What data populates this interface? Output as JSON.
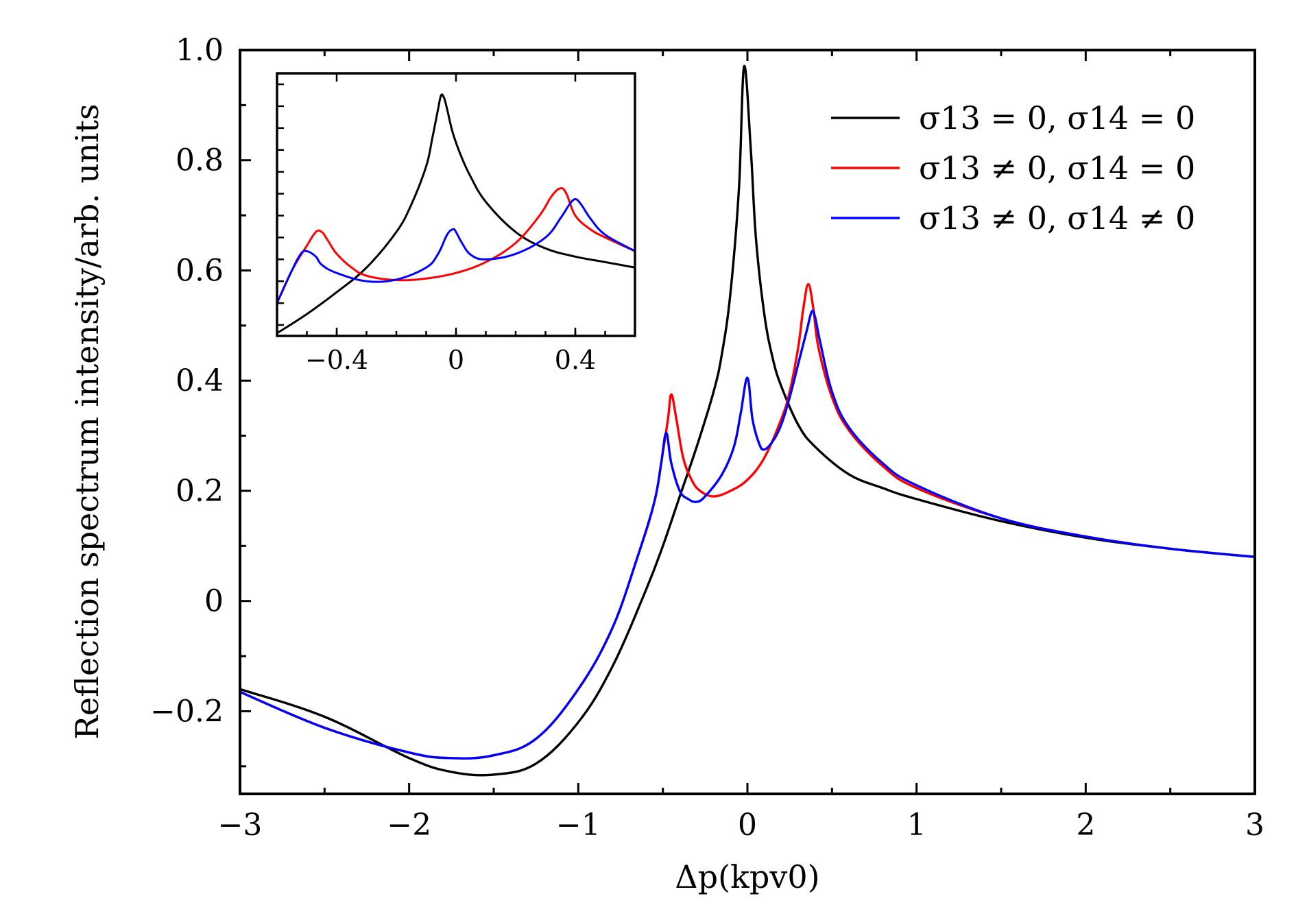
{
  "chart_data": {
    "type": "line",
    "xlabel": "Δp(kpv0)",
    "ylabel": "Reflection spectrum intensity/arb. units",
    "xlim": [
      -3,
      3
    ],
    "ylim": [
      -0.35,
      1.0
    ],
    "x_ticks": [
      -3,
      -2,
      -1,
      0,
      1,
      2,
      3
    ],
    "x_tick_labels": [
      "−3",
      "−2",
      "−1",
      "0",
      "1",
      "2",
      "3"
    ],
    "y_ticks": [
      -0.2,
      0,
      0.2,
      0.4,
      0.6,
      0.8,
      1.0
    ],
    "y_tick_labels": [
      "−0.2",
      "0",
      "0.2",
      "0.4",
      "0.6",
      "0.8",
      "1.0"
    ],
    "legend_position": "top-right",
    "series": [
      {
        "name": "σ13 = 0, σ14 = 0",
        "color": "#000000",
        "x": [
          -3.0,
          -2.5,
          -2.0,
          -1.75,
          -1.5,
          -1.25,
          -1.0,
          -0.8,
          -0.6,
          -0.5,
          -0.4,
          -0.3,
          -0.2,
          -0.15,
          -0.1,
          -0.05,
          -0.02,
          0.02,
          0.05,
          0.1,
          0.15,
          0.2,
          0.3,
          0.4,
          0.6,
          0.8,
          1.0,
          1.5,
          2.0,
          2.5,
          3.0
        ],
        "y": [
          -0.16,
          -0.21,
          -0.285,
          -0.31,
          -0.315,
          -0.295,
          -0.22,
          -0.12,
          0.02,
          0.1,
          0.19,
          0.28,
          0.38,
          0.45,
          0.56,
          0.75,
          0.97,
          0.82,
          0.66,
          0.52,
          0.44,
          0.39,
          0.32,
          0.28,
          0.23,
          0.205,
          0.185,
          0.145,
          0.115,
          0.095,
          0.08
        ]
      },
      {
        "name": "σ13 ≠ 0, σ14 = 0",
        "color": "#ff0000",
        "x": [
          -3.0,
          -2.5,
          -2.0,
          -1.75,
          -1.5,
          -1.25,
          -1.0,
          -0.8,
          -0.65,
          -0.55,
          -0.5,
          -0.47,
          -0.45,
          -0.42,
          -0.38,
          -0.33,
          -0.28,
          -0.2,
          -0.1,
          0.0,
          0.1,
          0.2,
          0.25,
          0.3,
          0.33,
          0.36,
          0.39,
          0.42,
          0.5,
          0.6,
          0.8,
          1.0,
          1.5,
          2.0,
          2.5,
          3.0
        ],
        "y": [
          -0.165,
          -0.23,
          -0.275,
          -0.285,
          -0.28,
          -0.25,
          -0.16,
          -0.05,
          0.08,
          0.18,
          0.27,
          0.33,
          0.375,
          0.33,
          0.26,
          0.22,
          0.2,
          0.19,
          0.2,
          0.22,
          0.26,
          0.33,
          0.38,
          0.46,
          0.53,
          0.575,
          0.53,
          0.46,
          0.37,
          0.31,
          0.245,
          0.205,
          0.15,
          0.117,
          0.095,
          0.08
        ]
      },
      {
        "name": "σ13 ≠ 0, σ14 ≠ 0",
        "color": "#0000ff",
        "x": [
          -3.0,
          -2.5,
          -2.0,
          -1.75,
          -1.5,
          -1.25,
          -1.0,
          -0.8,
          -0.65,
          -0.55,
          -0.51,
          -0.48,
          -0.45,
          -0.4,
          -0.35,
          -0.3,
          -0.25,
          -0.15,
          -0.08,
          -0.04,
          0.0,
          0.03,
          0.07,
          0.1,
          0.15,
          0.2,
          0.25,
          0.3,
          0.35,
          0.38,
          0.4,
          0.43,
          0.5,
          0.6,
          0.8,
          1.0,
          1.5,
          2.0,
          2.5,
          3.0
        ],
        "y": [
          -0.165,
          -0.23,
          -0.275,
          -0.285,
          -0.28,
          -0.25,
          -0.16,
          -0.05,
          0.08,
          0.18,
          0.25,
          0.305,
          0.25,
          0.2,
          0.185,
          0.18,
          0.19,
          0.23,
          0.28,
          0.34,
          0.405,
          0.33,
          0.285,
          0.275,
          0.29,
          0.32,
          0.37,
          0.43,
          0.49,
          0.525,
          0.515,
          0.47,
          0.38,
          0.315,
          0.25,
          0.21,
          0.15,
          0.117,
          0.095,
          0.08
        ]
      }
    ],
    "inset": {
      "xlim": [
        -0.6,
        0.6
      ],
      "ylim": [
        0.5,
        0.98
      ],
      "x_ticks": [
        -0.4,
        0,
        0.4
      ],
      "x_tick_labels": [
        "−0.4",
        "0",
        "0.4"
      ],
      "series": [
        {
          "color": "#000000",
          "x": [
            -0.6,
            -0.5,
            -0.4,
            -0.3,
            -0.2,
            -0.15,
            -0.1,
            -0.08,
            -0.06,
            -0.05,
            -0.04,
            -0.03,
            -0.01,
            0.02,
            0.05,
            0.1,
            0.2,
            0.3,
            0.4,
            0.5,
            0.6
          ],
          "y": [
            0.505,
            0.54,
            0.58,
            0.625,
            0.69,
            0.74,
            0.81,
            0.86,
            0.915,
            0.94,
            0.935,
            0.915,
            0.87,
            0.825,
            0.79,
            0.745,
            0.69,
            0.66,
            0.645,
            0.635,
            0.625
          ]
        },
        {
          "color": "#ff0000",
          "x": [
            -0.6,
            -0.55,
            -0.5,
            -0.47,
            -0.45,
            -0.43,
            -0.4,
            -0.35,
            -0.3,
            -0.2,
            -0.1,
            0.0,
            0.1,
            0.2,
            0.28,
            0.32,
            0.35,
            0.37,
            0.4,
            0.45,
            0.5,
            0.6
          ],
          "y": [
            0.56,
            0.62,
            0.665,
            0.69,
            0.69,
            0.675,
            0.65,
            0.625,
            0.61,
            0.602,
            0.605,
            0.615,
            0.635,
            0.67,
            0.72,
            0.755,
            0.77,
            0.76,
            0.72,
            0.695,
            0.68,
            0.655
          ]
        },
        {
          "color": "#0000ff",
          "x": [
            -0.6,
            -0.55,
            -0.52,
            -0.5,
            -0.47,
            -0.45,
            -0.4,
            -0.3,
            -0.2,
            -0.1,
            -0.06,
            -0.03,
            -0.01,
            0.0,
            0.02,
            0.05,
            0.1,
            0.2,
            0.3,
            0.35,
            0.38,
            0.4,
            0.42,
            0.45,
            0.5,
            0.6
          ],
          "y": [
            0.56,
            0.62,
            0.65,
            0.655,
            0.645,
            0.63,
            0.615,
            0.6,
            0.603,
            0.625,
            0.65,
            0.685,
            0.695,
            0.69,
            0.67,
            0.648,
            0.64,
            0.65,
            0.68,
            0.715,
            0.74,
            0.75,
            0.74,
            0.715,
            0.685,
            0.655
          ]
        }
      ]
    }
  }
}
